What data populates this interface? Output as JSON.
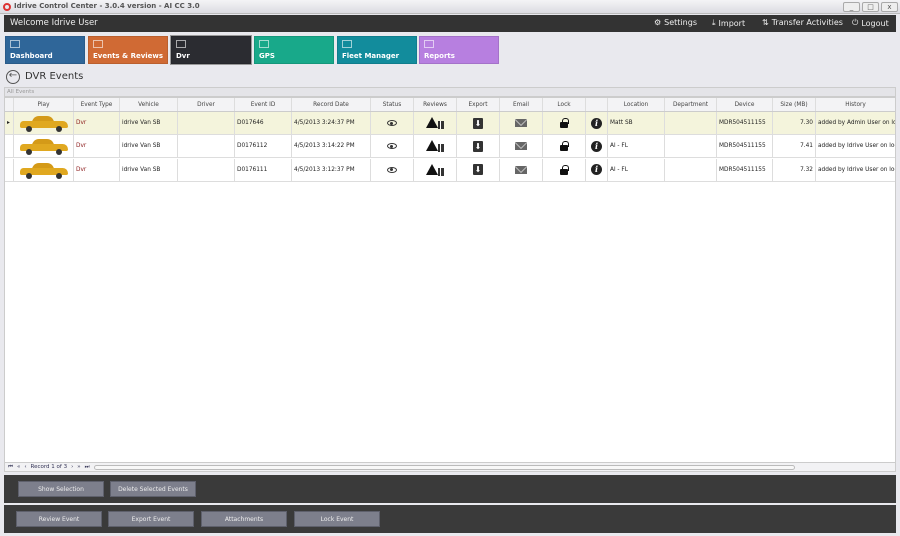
{
  "window": {
    "title": "Idrive Control Center - 3.0.4 version - AI CC 3.0",
    "minimize": "_",
    "maximize": "□",
    "close": "x"
  },
  "header": {
    "welcome": "Welcome Idrive User",
    "links": [
      {
        "label": "Settings",
        "icon": "gears-icon"
      },
      {
        "label": "Import",
        "icon": "import-icon"
      },
      {
        "label": "Transfer Activities",
        "icon": "transfer-icon"
      },
      {
        "label": "Logout",
        "icon": "power-icon"
      }
    ]
  },
  "tiles": [
    {
      "label": "Dashboard",
      "color": "#2f6699"
    },
    {
      "label": "Events & Reviews",
      "color": "#d06a34"
    },
    {
      "label": "Dvr",
      "color": "#2b2c31",
      "active": true
    },
    {
      "label": "GPS",
      "color": "#18a98a"
    },
    {
      "label": "Fleet Manager",
      "color": "#128c9c"
    },
    {
      "label": "Reports",
      "color": "#b77fe0"
    }
  ],
  "page": {
    "title": "DVR Events",
    "group": "All Events"
  },
  "grid": {
    "columns": [
      "Play",
      "Event Type",
      "Vehicle",
      "Driver",
      "Event ID",
      "Record Date",
      "Status",
      "Reviews",
      "Export",
      "Email",
      "Lock",
      "",
      "Location",
      "Department",
      "Device",
      "Size (MB)",
      "History"
    ],
    "rows": [
      {
        "event_type": "Dvr",
        "vehicle": "idrive Van SB",
        "driver": "",
        "event_id": "D017646",
        "record_date": "4/5/2013 3:24:37 PM",
        "location": "Matt SB",
        "department": "",
        "device": "MDR504511155",
        "size": "7.30",
        "history": "added by Admin User on loca",
        "selected": true
      },
      {
        "event_type": "Dvr",
        "vehicle": "idrive Van SB",
        "driver": "",
        "event_id": "D0176112",
        "record_date": "4/5/2013 3:14:22 PM",
        "location": "Al - FL",
        "department": "",
        "device": "MDR504511155",
        "size": "7.41",
        "history": "added by Idrive User on loca"
      },
      {
        "event_type": "Dvr",
        "vehicle": "idrive Van SB",
        "driver": "",
        "event_id": "D0176111",
        "record_date": "4/5/2013 3:12:37 PM",
        "location": "Al - FL",
        "department": "",
        "device": "MDR504511155",
        "size": "7.32",
        "history": "added by Idrive User on loca"
      }
    ]
  },
  "pager": {
    "text": "Record 1 of 3"
  },
  "actions1": [
    "Show Selection",
    "Delete Selected  Events"
  ],
  "actions2": [
    "Review Event",
    "Export Event",
    "Attachments",
    "Lock Event"
  ]
}
